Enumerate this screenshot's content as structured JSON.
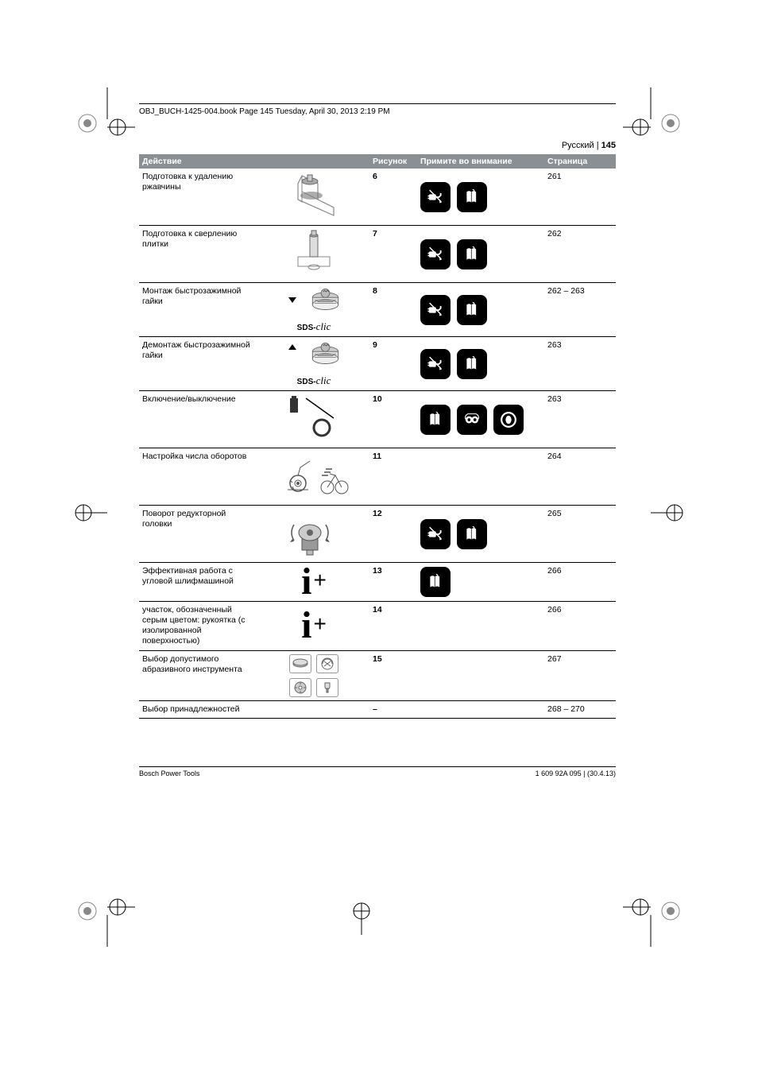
{
  "header": {
    "book_line": "OBJ_BUCH-1425-004.book  Page 145  Tuesday, April 30, 2013  2:19 PM",
    "language": "Русский",
    "page_num": "145"
  },
  "table": {
    "headers": {
      "action": "Действие",
      "figure": "Рисунок",
      "note": "Примите во внимание",
      "page": "Страница"
    },
    "rows": [
      {
        "action": "Подготовка к удалению ржавчины",
        "figure": "6",
        "page": "261",
        "notes": [
          "plug",
          "manual"
        ],
        "illus": "rust"
      },
      {
        "action": "Подготовка к сверлению плитки",
        "figure": "7",
        "page": "262",
        "notes": [
          "plug",
          "manual"
        ],
        "illus": "tile"
      },
      {
        "action": "Монтаж быстрозажимной гайки",
        "figure": "8",
        "page": "262 – 263",
        "notes": [
          "plug",
          "manual"
        ],
        "illus": "sds-down"
      },
      {
        "action": "Демонтаж быстрозажимной гайки",
        "figure": "9",
        "page": "263",
        "notes": [
          "plug",
          "manual"
        ],
        "illus": "sds-up"
      },
      {
        "action": "Включение/выключение",
        "figure": "10",
        "page": "263",
        "notes": [
          "manual",
          "goggles",
          "ear"
        ],
        "illus": "switch"
      },
      {
        "action": "Настройка числа оборотов",
        "figure": "11",
        "page": "264",
        "notes": [],
        "illus": "speed"
      },
      {
        "action": "Поворот редукторной головки",
        "figure": "12",
        "page": "265",
        "notes": [
          "plug",
          "manual"
        ],
        "illus": "gear"
      },
      {
        "action": "Эффективная работа с угловой шлифмашиной",
        "figure": "13",
        "page": "266",
        "notes": [
          "manual"
        ],
        "illus": "info"
      },
      {
        "action": "участок, обозначенный серым цветом: рукоятка (с изолированной поверхностью)",
        "figure": "14",
        "page": "266",
        "notes": [],
        "illus": "info"
      },
      {
        "action": "Выбор допустимого абразивного инструмента",
        "figure": "15",
        "page": "267",
        "notes": [],
        "illus": "abrasive"
      },
      {
        "action": "Выбор принадлежностей",
        "figure": "–",
        "page": "268 – 270",
        "notes": [],
        "illus": "none"
      }
    ]
  },
  "footer": {
    "left": "Bosch Power Tools",
    "right": "1 609 92A 095 | (30.4.13)"
  },
  "sds_label": "SDS-",
  "sds_clic": "clic"
}
